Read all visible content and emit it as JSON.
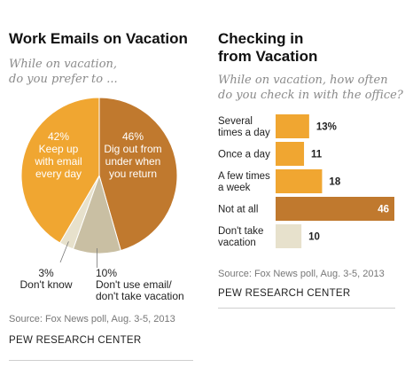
{
  "left_panel": {
    "title": "Work Emails on Vacation",
    "subtitle_line1": "While on vacation,",
    "subtitle_line2": "do you prefer to ...",
    "source": "Source: Fox News poll, Aug. 3-5, 2013",
    "credit": "PEW RESEARCH CENTER"
  },
  "right_panel": {
    "title_line1": "Checking in",
    "title_line2": "from Vacation",
    "subtitle_line1": "While on vacation, how often",
    "subtitle_line2": "do you check in with the office?",
    "source": "Source: Fox News poll, Aug. 3-5, 2013",
    "credit": "PEW RESEARCH CENTER"
  },
  "chart_data": [
    {
      "type": "pie",
      "title": "Work Emails on Vacation",
      "subtitle": "While on vacation, do you prefer to ...",
      "slices": [
        {
          "value": 46,
          "pct_label": "46%",
          "label_lines": [
            "Dig out from",
            "under when",
            "you return"
          ],
          "color": "#c0792e"
        },
        {
          "value": 10,
          "pct_label": "10%",
          "label_lines": [
            "Don't use email/",
            "don't take vacation"
          ],
          "color": "#c9bfa3"
        },
        {
          "value": 3,
          "pct_label": "3%",
          "label_lines": [
            "Don't know"
          ],
          "color": "#e7e1cc"
        },
        {
          "value": 42,
          "pct_label": "42%",
          "label_lines": [
            "Keep up",
            "with email",
            "every day"
          ],
          "color": "#f0a631"
        }
      ]
    },
    {
      "type": "bar",
      "orientation": "horizontal",
      "title": "Checking in from Vacation",
      "subtitle": "While on vacation, how often do you check in with the office?",
      "categories": [
        [
          "Several",
          "times a day"
        ],
        [
          "Once a day"
        ],
        [
          "A few times",
          "a week"
        ],
        [
          "Not at all"
        ],
        [
          "Don't take",
          "vacation"
        ]
      ],
      "values": [
        13,
        11,
        18,
        46,
        10
      ],
      "value_labels": [
        "13%",
        "11",
        "18",
        "46",
        "10"
      ],
      "colors": [
        "#f0a631",
        "#f0a631",
        "#f0a631",
        "#c0792e",
        "#e7e1cc"
      ],
      "xlim": [
        0,
        46
      ]
    }
  ]
}
